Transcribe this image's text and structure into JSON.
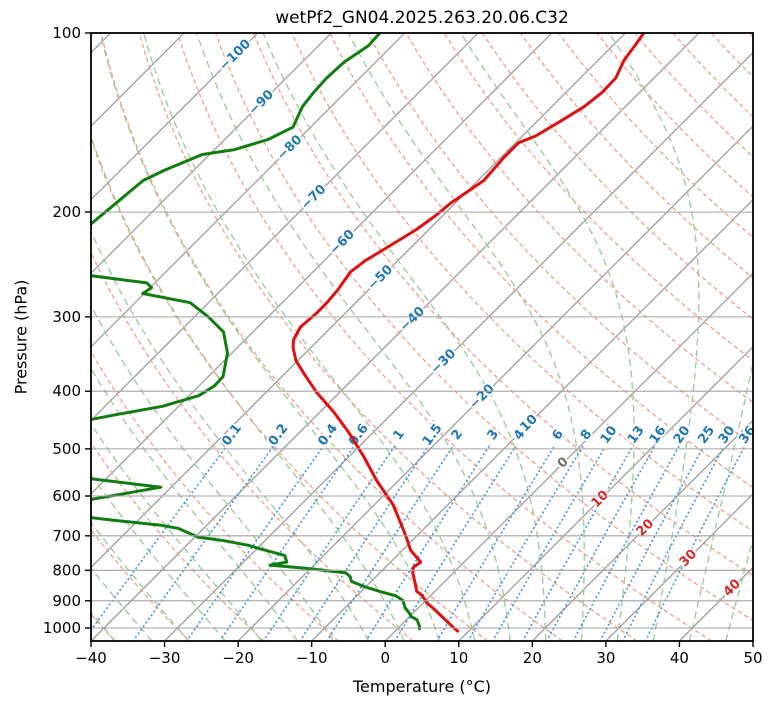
{
  "chart_data": {
    "type": "line",
    "chart_kind": "skew-t-log-p-sounding",
    "title": "wetPf2_GN04.2025.263.20.06.C32",
    "xlabel": "Temperature (°C)",
    "ylabel": "Pressure (hPa)",
    "x_ticks": [
      -40,
      -30,
      -20,
      -10,
      0,
      10,
      20,
      30,
      40,
      50
    ],
    "y_ticks": [
      100,
      200,
      300,
      400,
      500,
      600,
      700,
      800,
      900,
      1000
    ],
    "x_range_c": [
      -40,
      50
    ],
    "pressure_range_hpa": [
      100,
      1051.6
    ],
    "skew": "45deg",
    "grid": true,
    "legend": "none",
    "series": [
      {
        "name": "temperature",
        "color": "#e01010",
        "units": {
          "x": "hPa",
          "y": "degC"
        },
        "points": [
          [
            100,
            -47.5
          ],
          [
            105,
            -47.0
          ],
          [
            111,
            -46.5
          ],
          [
            119,
            -45.2
          ],
          [
            126,
            -45.1
          ],
          [
            133,
            -45.6
          ],
          [
            141,
            -46.9
          ],
          [
            149,
            -48.2
          ],
          [
            153,
            -49.6
          ],
          [
            162,
            -49.6
          ],
          [
            177,
            -49.2
          ],
          [
            193,
            -50.6
          ],
          [
            203,
            -51.0
          ],
          [
            214,
            -51.7
          ],
          [
            232,
            -53.5
          ],
          [
            241,
            -54.4
          ],
          [
            252,
            -54.9
          ],
          [
            270,
            -54.2
          ],
          [
            285,
            -53.9
          ],
          [
            296,
            -53.9
          ],
          [
            312,
            -54.2
          ],
          [
            328,
            -53.4
          ],
          [
            338,
            -52.4
          ],
          [
            355,
            -50.3
          ],
          [
            373,
            -47.5
          ],
          [
            402,
            -43.1
          ],
          [
            433,
            -38.2
          ],
          [
            470,
            -33.2
          ],
          [
            516,
            -27.9
          ],
          [
            565,
            -23.0
          ],
          [
            620,
            -17.5
          ],
          [
            683,
            -12.7
          ],
          [
            712,
            -10.7
          ],
          [
            740,
            -8.9
          ],
          [
            775,
            -5.9
          ],
          [
            790,
            -6.2
          ],
          [
            808,
            -5.5
          ],
          [
            829,
            -4.4
          ],
          [
            867,
            -2.5
          ],
          [
            883,
            -1.1
          ],
          [
            910,
            0.7
          ],
          [
            927,
            2.1
          ],
          [
            962,
            4.8
          ],
          [
            999,
            7.5
          ],
          [
            1012,
            8.5
          ]
        ]
      },
      {
        "name": "dewpoint",
        "color": "#107d10",
        "units": {
          "x": "hPa",
          "y": "degC"
        },
        "points": [
          [
            100,
            -83.4
          ],
          [
            105,
            -83.2
          ],
          [
            112,
            -84.3
          ],
          [
            119,
            -84.5
          ],
          [
            126,
            -84.3
          ],
          [
            133,
            -83.9
          ],
          [
            144,
            -82.4
          ],
          [
            151,
            -84.1
          ],
          [
            157,
            -87.3
          ],
          [
            160,
            -91.0
          ],
          [
            170,
            -94.0
          ],
          [
            177,
            -95.5
          ],
          [
            215,
            -96.9
          ],
          [
            235,
            -101.0
          ],
          [
            255,
            -90.6
          ],
          [
            263,
            -81.1
          ],
          [
            268,
            -79.8
          ],
          [
            274,
            -80.2
          ],
          [
            284,
            -72.5
          ],
          [
            300,
            -68.1
          ],
          [
            318,
            -64.0
          ],
          [
            345,
            -60.6
          ],
          [
            378,
            -58.0
          ],
          [
            392,
            -57.9
          ],
          [
            407,
            -58.7
          ],
          [
            424,
            -62.2
          ],
          [
            438,
            -67.4
          ],
          [
            448,
            -70.7
          ],
          [
            470,
            -78.0
          ],
          [
            520,
            -78.0
          ],
          [
            543,
            -68.0
          ],
          [
            560,
            -62.8
          ],
          [
            580,
            -51.4
          ],
          [
            610,
            -59.8
          ],
          [
            630,
            -66.0
          ],
          [
            651,
            -57.5
          ],
          [
            659,
            -53.4
          ],
          [
            672,
            -46.2
          ],
          [
            680,
            -43.5
          ],
          [
            704,
            -39.5
          ],
          [
            712,
            -36.0
          ],
          [
            726,
            -31.6
          ],
          [
            735,
            -29.8
          ],
          [
            755,
            -25.3
          ],
          [
            775,
            -24.1
          ],
          [
            784,
            -26.0
          ],
          [
            794,
            -20.5
          ],
          [
            808,
            -14.6
          ],
          [
            820,
            -13.5
          ],
          [
            835,
            -12.7
          ],
          [
            851,
            -10.4
          ],
          [
            867,
            -7.7
          ],
          [
            883,
            -4.7
          ],
          [
            899,
            -3.1
          ],
          [
            925,
            -1.8
          ],
          [
            941,
            -0.7
          ],
          [
            958,
            0.3
          ],
          [
            968,
            1.4
          ],
          [
            992,
            2.6
          ],
          [
            1003,
            3.0
          ]
        ]
      }
    ],
    "background_lines": {
      "pressure_gridline_color": "#a3a3a3",
      "isotherms": {
        "color": "#969696",
        "min_c": -120,
        "max_c": 50,
        "step_c": 10,
        "label_colors": {
          "negative": "#1f77b4",
          "zero": "#6f6f6f",
          "positive": "#d62728"
        },
        "labels_at": [
          [
            -100,
            109
          ],
          [
            -90,
            131
          ],
          [
            -80,
            156
          ],
          [
            -70,
            189
          ],
          [
            -60,
            225
          ],
          [
            -50,
            258
          ],
          [
            -40,
            303
          ],
          [
            -30,
            357
          ],
          [
            -20,
            409
          ],
          [
            -10,
            460
          ],
          [
            0,
            528
          ],
          [
            10,
            608
          ],
          [
            20,
            679
          ],
          [
            30,
            764
          ],
          [
            40,
            857
          ]
        ]
      },
      "dry_adiabats": {
        "color": "#f1a188",
        "theta_min_k": 233,
        "theta_max_k": 523,
        "step_k": 10
      },
      "moist_adiabats": {
        "color": "#9ccf98",
        "t0_min_c": -40,
        "t0_max_c": 45,
        "step_c": 5
      },
      "mixing_ratio": {
        "color": "#4a9ede",
        "label_color": "#1f77b4",
        "values_g_kg": [
          0.1,
          0.2,
          0.4,
          0.6,
          1,
          1.5,
          2,
          3,
          4,
          6,
          8,
          10,
          13,
          16,
          20,
          25,
          30,
          36
        ],
        "top_p_hpa": 495,
        "label_p_hpa": 474
      }
    }
  }
}
